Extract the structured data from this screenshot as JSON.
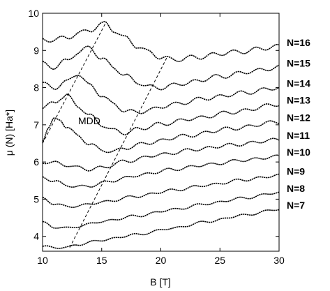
{
  "chart_data": {
    "type": "line",
    "title": "",
    "xlabel": "B [T]",
    "ylabel": "μ (N)  [Ha*]",
    "xlim": [
      10,
      30
    ],
    "ylim": [
      3.6,
      10
    ],
    "x_ticks": [
      10,
      15,
      20,
      25,
      30
    ],
    "y_ticks": [
      4,
      5,
      6,
      7,
      8,
      9,
      10
    ],
    "x_tick_labels": [
      "10",
      "15",
      "20",
      "25",
      "30"
    ],
    "y_tick_labels": [
      "4",
      "5",
      "6",
      "7",
      "8",
      "9",
      "10"
    ],
    "grid": false,
    "legend_position": "right",
    "annotation": "MDD",
    "series": [
      {
        "name": "N=7",
        "x": [
          10,
          11,
          12,
          13,
          15,
          18,
          21,
          24,
          27,
          30
        ],
        "y": [
          3.73,
          3.7,
          3.7,
          3.78,
          3.9,
          4.05,
          4.22,
          4.4,
          4.57,
          4.73
        ]
      },
      {
        "name": "N=8",
        "x": [
          10,
          11,
          12,
          13,
          15,
          18,
          21,
          24,
          27,
          30
        ],
        "y": [
          4.37,
          4.25,
          4.22,
          4.27,
          4.4,
          4.55,
          4.72,
          4.88,
          5.03,
          5.18
        ]
      },
      {
        "name": "N=9",
        "x": [
          10,
          11,
          12,
          13,
          15,
          18,
          21,
          24,
          27,
          30
        ],
        "y": [
          5.02,
          4.88,
          4.8,
          4.82,
          4.92,
          5.08,
          5.24,
          5.38,
          5.52,
          5.64
        ]
      },
      {
        "name": "N=10",
        "x": [
          10,
          11,
          12,
          13,
          14,
          16,
          18,
          21,
          24,
          27,
          30
        ],
        "y": [
          5.6,
          5.48,
          5.38,
          5.33,
          5.36,
          5.5,
          5.64,
          5.8,
          5.93,
          6.05,
          6.15
        ]
      },
      {
        "name": "N=11",
        "x": [
          10,
          11,
          12,
          13,
          14,
          15,
          17,
          20,
          23,
          26,
          30
        ],
        "y": [
          6.0,
          5.98,
          5.92,
          5.85,
          5.8,
          5.85,
          6.02,
          6.2,
          6.34,
          6.46,
          6.6
        ]
      },
      {
        "name": "N=12",
        "x": [
          10,
          10.5,
          11,
          11.5,
          12,
          13,
          14,
          15,
          16,
          17,
          19,
          22,
          26,
          30
        ],
        "y": [
          6.6,
          6.9,
          7.15,
          7.15,
          6.95,
          6.7,
          6.48,
          6.32,
          6.28,
          6.38,
          6.52,
          6.7,
          6.9,
          7.08
        ]
      },
      {
        "name": "N=13",
        "x": [
          10,
          11,
          11.7,
          12,
          13,
          14,
          15,
          16,
          17,
          18,
          20,
          23,
          26,
          30
        ],
        "y": [
          7.45,
          7.6,
          7.75,
          7.8,
          7.5,
          7.25,
          7.0,
          6.85,
          6.78,
          6.88,
          7.02,
          7.18,
          7.34,
          7.55
        ]
      },
      {
        "name": "N=14",
        "x": [
          10,
          11,
          12,
          13,
          14,
          15,
          16,
          17,
          18,
          19,
          21,
          24,
          27,
          30
        ],
        "y": [
          8.1,
          8.0,
          8.15,
          8.38,
          8.05,
          7.8,
          7.55,
          7.38,
          7.33,
          7.4,
          7.55,
          7.72,
          7.86,
          8.0
        ]
      },
      {
        "name": "N=15",
        "x": [
          10,
          11,
          12,
          13,
          14,
          15,
          16,
          17,
          18,
          19,
          20,
          22,
          25,
          28,
          30
        ],
        "y": [
          8.65,
          8.55,
          8.72,
          8.95,
          9.08,
          8.78,
          8.55,
          8.32,
          8.15,
          8.02,
          8.0,
          8.12,
          8.3,
          8.45,
          8.55
        ]
      },
      {
        "name": "N=16",
        "x": [
          10,
          11,
          12,
          13,
          14,
          15,
          15.3,
          16,
          17,
          18,
          19,
          20,
          21,
          23,
          26,
          30
        ],
        "y": [
          9.3,
          9.28,
          9.35,
          9.45,
          9.55,
          9.7,
          9.72,
          9.55,
          9.33,
          9.12,
          8.95,
          8.82,
          8.75,
          8.82,
          8.95,
          9.1
        ]
      }
    ],
    "guide_lines": [
      {
        "style": "dashed",
        "x": [
          10,
          15.3
        ],
        "y": [
          6.5,
          9.72
        ]
      },
      {
        "style": "dashed",
        "x": [
          12.3,
          20.5
        ],
        "y": [
          3.7,
          8.8
        ]
      }
    ]
  }
}
